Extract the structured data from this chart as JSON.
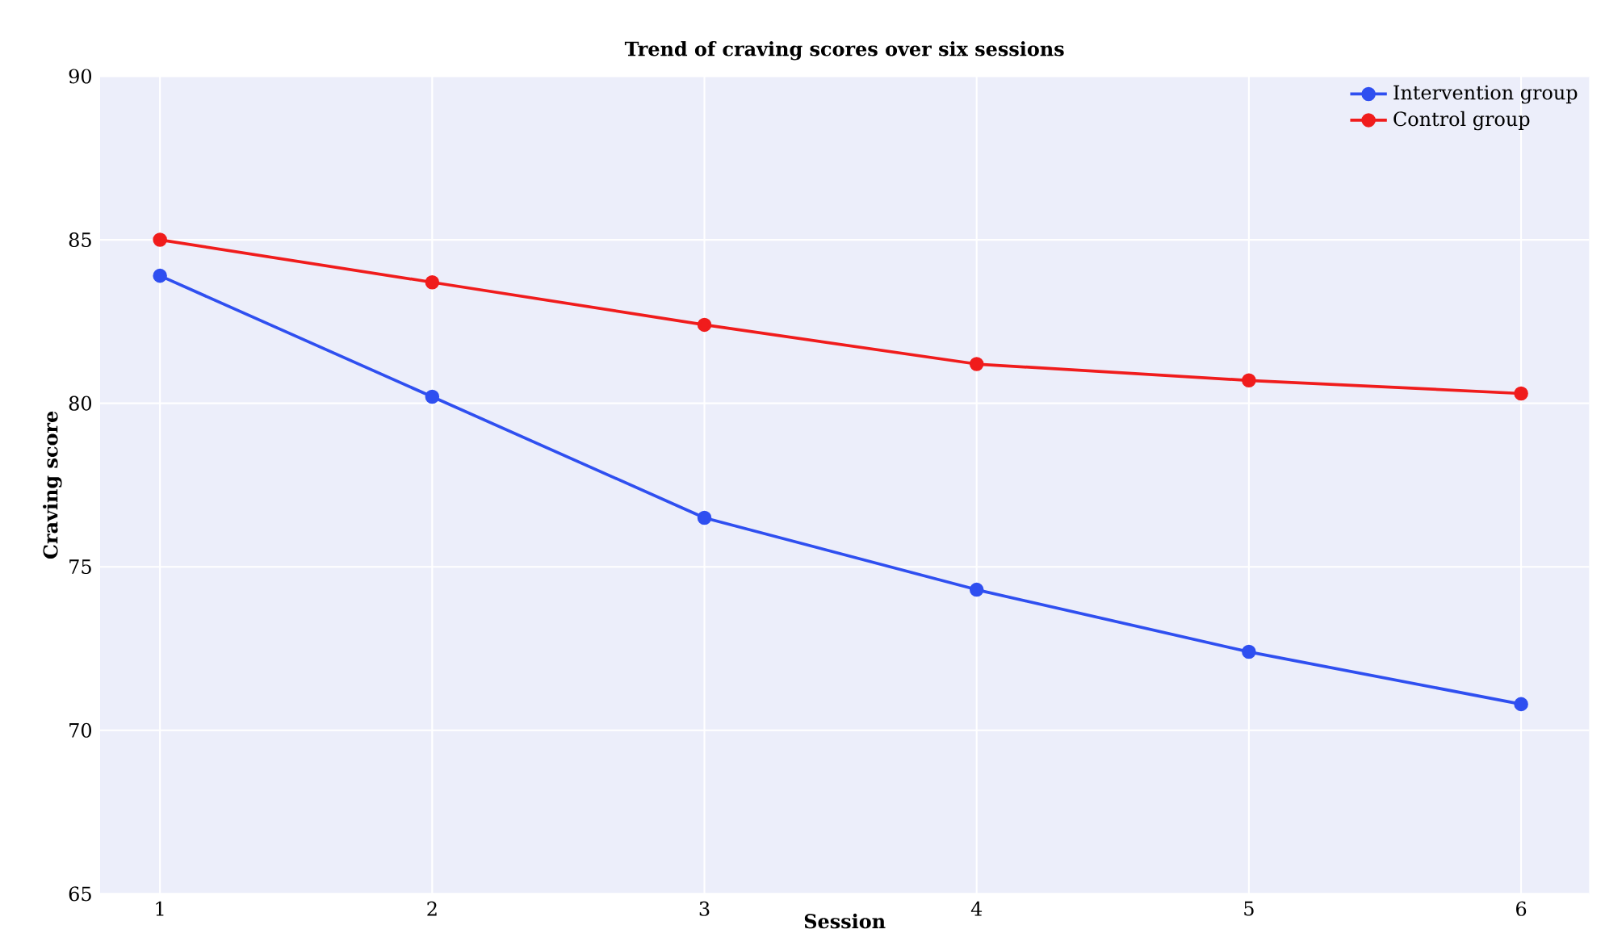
{
  "chart_data": {
    "type": "line",
    "title": "Trend of craving scores over six sessions",
    "xlabel": "Session",
    "ylabel": "Craving score",
    "x": [
      1,
      2,
      3,
      4,
      5,
      6
    ],
    "series": [
      {
        "name": "Intervention group",
        "color": "#2f4ff0",
        "values": [
          83.9,
          80.2,
          76.5,
          74.3,
          72.4,
          70.8
        ]
      },
      {
        "name": "Control group",
        "color": "#f01c1c",
        "values": [
          85.0,
          83.7,
          82.4,
          81.2,
          80.7,
          80.3
        ]
      }
    ],
    "xlim": [
      0.78,
      6.25
    ],
    "ylim": [
      65,
      90
    ],
    "xticks": [
      1,
      2,
      3,
      4,
      5,
      6
    ],
    "yticks": [
      65,
      70,
      75,
      80,
      85,
      90
    ],
    "grid": true,
    "legend": "top right",
    "marker": "circle",
    "line_style": "solid"
  }
}
